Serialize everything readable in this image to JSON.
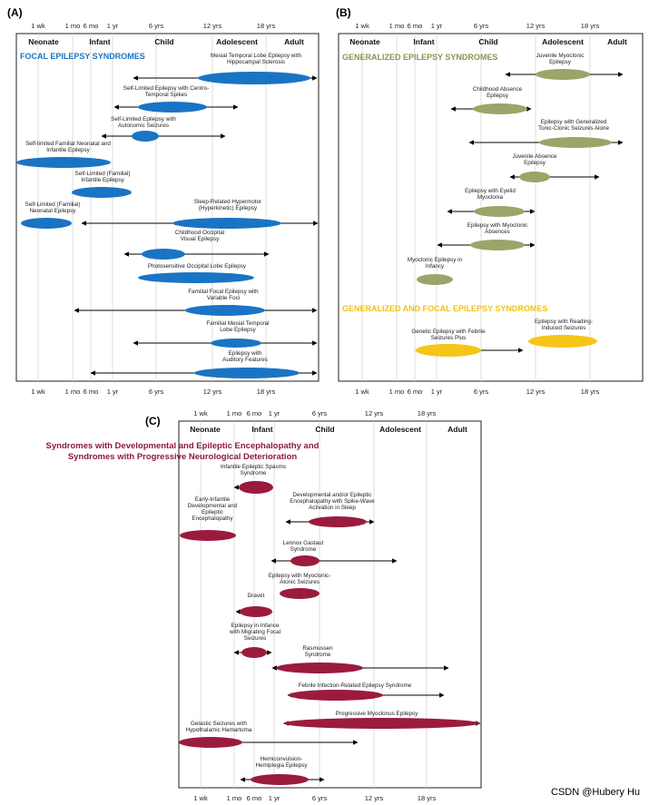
{
  "figure": {
    "watermark": "CSDN @Hubery Hu",
    "colors": {
      "panel_a": "#1a74c4",
      "panel_b": "#9aa56a",
      "panel_b_yellow": "#f5c518",
      "panel_c": "#9b1b3d"
    },
    "age_ticks": [
      "1 wk",
      "1 mo",
      "6 mo",
      "1 yr",
      "6 yrs",
      "12 yrs",
      "18 yrs"
    ],
    "stages": [
      "Neonate",
      "Infant",
      "Child",
      "Adolescent",
      "Adult"
    ]
  },
  "panel_a": {
    "label": "(A)",
    "section_title": "FOCAL EPILEPSY SYNDROMES",
    "syndromes": [
      {
        "name": "Mesial Temporal Lobe Epilepsy with Hippocampal Sclerosis",
        "lines": [
          "Mesial Temporal Lobe Epilepsy with",
          "Hippocampal Sclerosis"
        ]
      },
      {
        "name": "Self-Limited Epilepsy with Centro-Temporal Spikes",
        "lines": [
          "Self-Limited Epilepsy with Centro-",
          "Temporal Spikes"
        ]
      },
      {
        "name": "Self-Limited Epilepsy with Autonomic Seizures",
        "lines": [
          "Self-Limited Epilepsy with",
          "Autonomic Seizures"
        ]
      },
      {
        "name": "Self-limited Familial Neonatal and Infantile Epilepsy",
        "lines": [
          "Self-limited Familial Neonatal and",
          "Infantile Epilepsy"
        ]
      },
      {
        "name": "Self-Limited (Familial) Infantile Epilepsy",
        "lines": [
          "Self-Limited (Familial)",
          "Infantile Epilepsy"
        ]
      },
      {
        "name": "Self-Limited (Familial) Neonatal Epilepsy",
        "lines": [
          "Self-Limited (Familial)",
          "Neonatal Epilepsy"
        ]
      },
      {
        "name": "Sleep-Related Hypermotor (Hyperkinetic) Epilepsy",
        "lines": [
          "Sleep-Related Hypermotor",
          "(Hyperkinetic) Epilepsy"
        ]
      },
      {
        "name": "Childhood Occipital Visual Epilepsy",
        "lines": [
          "Childhood Occipital",
          "Visual Epilepsy"
        ]
      },
      {
        "name": "Photosensitive Occipital Lobe Epilepsy",
        "lines": [
          "Photosensitive Occipital Lobe Epilepsy"
        ]
      },
      {
        "name": "Familial Focal Epilepsy with Variable Foci",
        "lines": [
          "Familial Focal Epilepsy with",
          "Variable Foci"
        ]
      },
      {
        "name": "Familial Mesial Temporal Lobe Epilepsy",
        "lines": [
          "Familial Mesial Temporal",
          "Lobe Epilepsy"
        ]
      },
      {
        "name": "Epilepsy with Auditory Features",
        "lines": [
          "Epilepsy with",
          "Auditory Features"
        ]
      }
    ]
  },
  "panel_b": {
    "label": "(B)",
    "section_title": "GENERALIZED EPILEPSY SYNDROMES",
    "section_title_2": "GENERALIZED AND FOCAL EPILEPSY SYNDROMES",
    "syndromes": [
      {
        "name": "Juvenile Myoclonic Epilepsy",
        "lines": [
          "Juvenile Myoclonic",
          "Epilepsy"
        ]
      },
      {
        "name": "Childhood Absence Epilepsy",
        "lines": [
          "Childhood Absence",
          "Epilepsy"
        ]
      },
      {
        "name": "Epilepsy with Generalized Tonic-Clonic Seizures Alone",
        "lines": [
          "Epilepsy with Generalized",
          "Tonic-Clonic Seizures Alone"
        ]
      },
      {
        "name": "Juvenile Absence Epilepsy",
        "lines": [
          "Juvenile Absence",
          "Epilepsy"
        ]
      },
      {
        "name": "Epilepsy with Eyelid Myoclonia",
        "lines": [
          "Epilepsy with Eyelid",
          "Myoclonia"
        ]
      },
      {
        "name": "Epilepsy with Myoclonic Absences",
        "lines": [
          "Epilepsy with Myoclonic",
          "Absences"
        ]
      },
      {
        "name": "Myoclonic Epilepsy in Infancy",
        "lines": [
          "Myoclonic Epilepsy in",
          "Infancy"
        ]
      },
      {
        "name": "Genetic Epilepsy with Febrile Seizures Plus",
        "lines": [
          "Genetic Epilepsy with Febrile",
          "Seizures Plus"
        ]
      },
      {
        "name": "Epilepsy with Reading-Induced Seizures",
        "lines": [
          "Epilepsy with Reading-",
          "Induced Seizures"
        ]
      }
    ]
  },
  "panel_c": {
    "label": "(C)",
    "section_title_lines": [
      "Syndromes with Developmental and Epileptic Encephalopathy and",
      "Syndromes with Progressive Neurological Deterioration"
    ],
    "syndromes": [
      {
        "name": "Infantile Epileptic Spasms Syndrome",
        "lines": [
          "Infantile Epileptic Spasms",
          "Syndrome"
        ]
      },
      {
        "name": "Early-Infantile Developmental and Epileptic Encephalopathy",
        "lines": [
          "Early-Infantile",
          "Developmental and",
          "Epileptic",
          "Encephalopathy"
        ]
      },
      {
        "name": "Developmental and/or Epileptic Encephalopathy with Spike-Wave Activation in Sleep",
        "lines": [
          "Developmental and/or Epileptic",
          "Encephalopathy with Spike-Wave",
          "Activation in Sleep"
        ]
      },
      {
        "name": "Lennox Gastaut Syndrome",
        "lines": [
          "Lennox Gastaut",
          "Syndrome"
        ]
      },
      {
        "name": "Epilepsy with Myoclonic-Atonic Seizures",
        "lines": [
          "Epilepsy with Myoclonic-",
          "Atonic Seizures"
        ]
      },
      {
        "name": "Dravet",
        "lines": [
          "Dravet"
        ]
      },
      {
        "name": "Epilepsy in Infance with Migrating Focal Seizures",
        "lines": [
          "Epilepsy in Infance",
          "with Migrating Focal",
          "Seizures"
        ]
      },
      {
        "name": "Rasmussen Syndrome",
        "lines": [
          "Rasmussen",
          "Syndrome"
        ]
      },
      {
        "name": "Febrile Infection-Related Epilepsy Syndrome",
        "lines": [
          "Febrile Infection-Related Epilepsy Syndrome"
        ]
      },
      {
        "name": "Progressive Myoclonus Epilepsy",
        "lines": [
          "Progressive Myoclonus Epilepsy"
        ]
      },
      {
        "name": "Gelastic Seizures with Hypothalamic Hamartoma",
        "lines": [
          "Gelastic Seizures with",
          "Hypothalamic Hamartoma"
        ]
      },
      {
        "name": "Hemiconvulsion-Hemiplegia Epilepsy",
        "lines": [
          "Hemiconvulsion-",
          "Hemiplegia Epilepsy"
        ]
      }
    ]
  }
}
